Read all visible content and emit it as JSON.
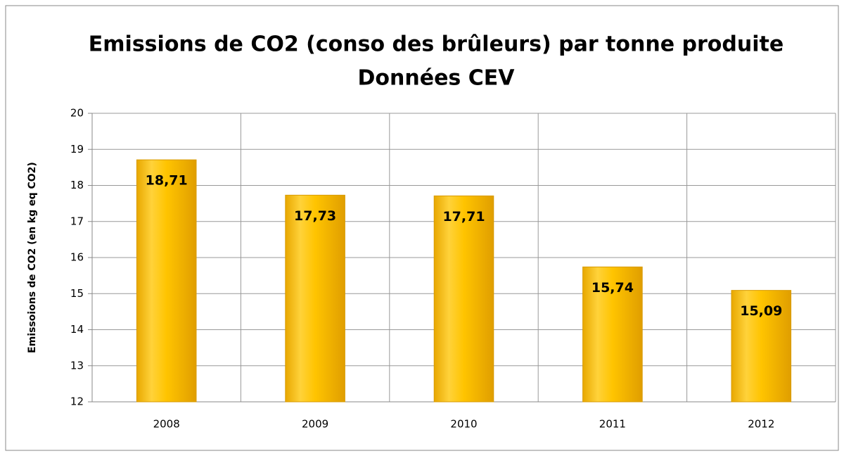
{
  "chart_data": {
    "type": "bar",
    "title": "Emissions de CO2 (conso des brûleurs) par tonne produite",
    "subtitle": "Données CEV",
    "y_label": "Emissoions de CO2 (en kg eq CO2)",
    "categories": [
      "2008",
      "2009",
      "2010",
      "2011",
      "2012"
    ],
    "values": [
      18.71,
      17.73,
      17.71,
      15.74,
      15.09
    ],
    "value_labels": [
      "18,71",
      "17,73",
      "17,71",
      "15,74",
      "15,09"
    ],
    "color": "#ffc000",
    "ylim": [
      12,
      20
    ],
    "yticks": [
      12,
      13,
      14,
      15,
      16,
      17,
      18,
      19,
      20
    ],
    "grid": true
  }
}
